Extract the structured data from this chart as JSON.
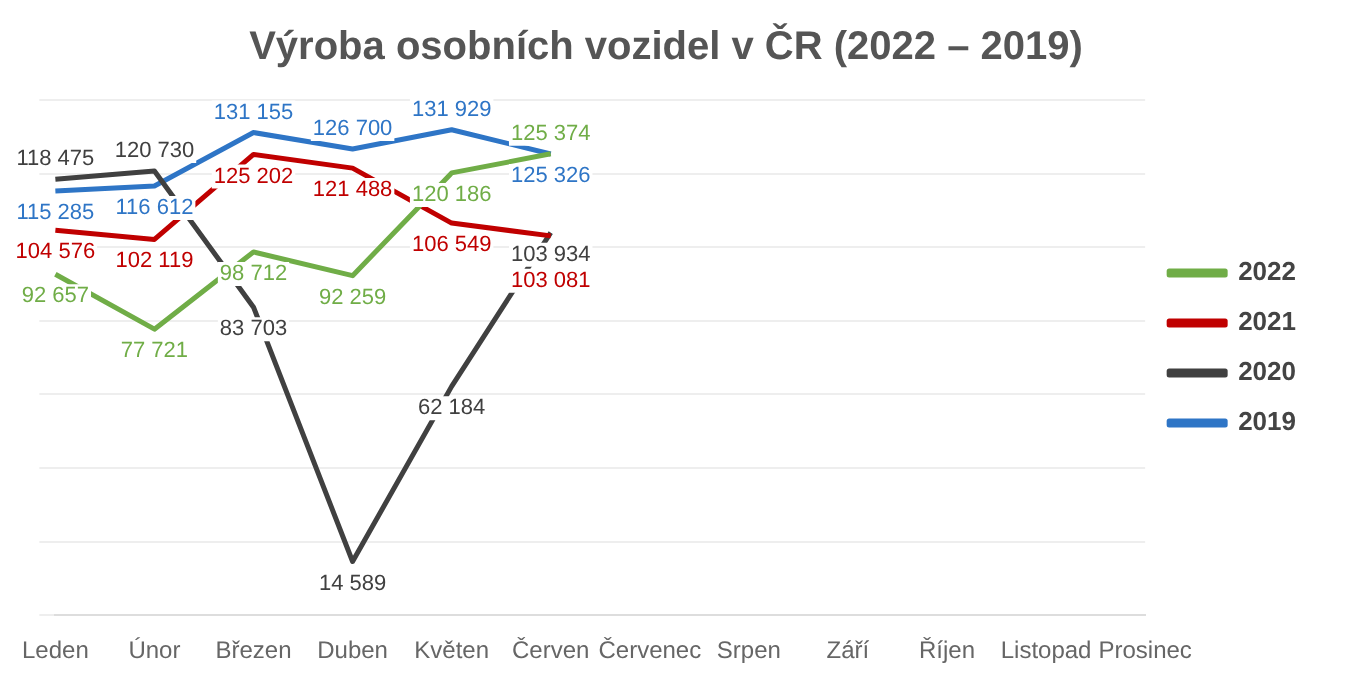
{
  "chart_data": {
    "type": "line",
    "title": "Výroba osobních vozidel v ČR (2022 – 2019)",
    "categories": [
      "Leden",
      "Únor",
      "Březen",
      "Duben",
      "Květen",
      "Červen",
      "Červenec",
      "Srpen",
      "Září",
      "Říjen",
      "Listopad",
      "Prosinec"
    ],
    "series": [
      {
        "name": "2022",
        "color": "#70ad47",
        "values": [
          92657,
          77721,
          98712,
          92259,
          120186,
          125374,
          null,
          null,
          null,
          null,
          null,
          null
        ]
      },
      {
        "name": "2021",
        "color": "#c00000",
        "values": [
          104576,
          102119,
          125202,
          121488,
          106549,
          103081,
          null,
          null,
          null,
          null,
          null,
          null
        ]
      },
      {
        "name": "2020",
        "color": "#404040",
        "values": [
          118475,
          120730,
          83703,
          14589,
          62184,
          103934,
          null,
          null,
          null,
          null,
          null,
          null
        ]
      },
      {
        "name": "2019",
        "color": "#2e75c6",
        "values": [
          115285,
          116612,
          131155,
          126700,
          131929,
          125326,
          null,
          null,
          null,
          null,
          null,
          null
        ]
      }
    ],
    "ylim": [
      0,
      140000
    ],
    "yticks": [
      {
        "value": 0,
        "label": null
      },
      {
        "value": 20000,
        "label": null
      },
      {
        "value": 40000,
        "label": null
      },
      {
        "value": 60000,
        "label": null
      },
      {
        "value": 80000,
        "label": null
      },
      {
        "value": 100000,
        "label": null
      },
      {
        "value": 120000,
        "label": null
      },
      {
        "value": 140000,
        "label": null
      }
    ],
    "tick_labels": "x",
    "grid": "y",
    "legend": "right",
    "data_labels": true,
    "marker": "none",
    "line_style": "solid"
  }
}
